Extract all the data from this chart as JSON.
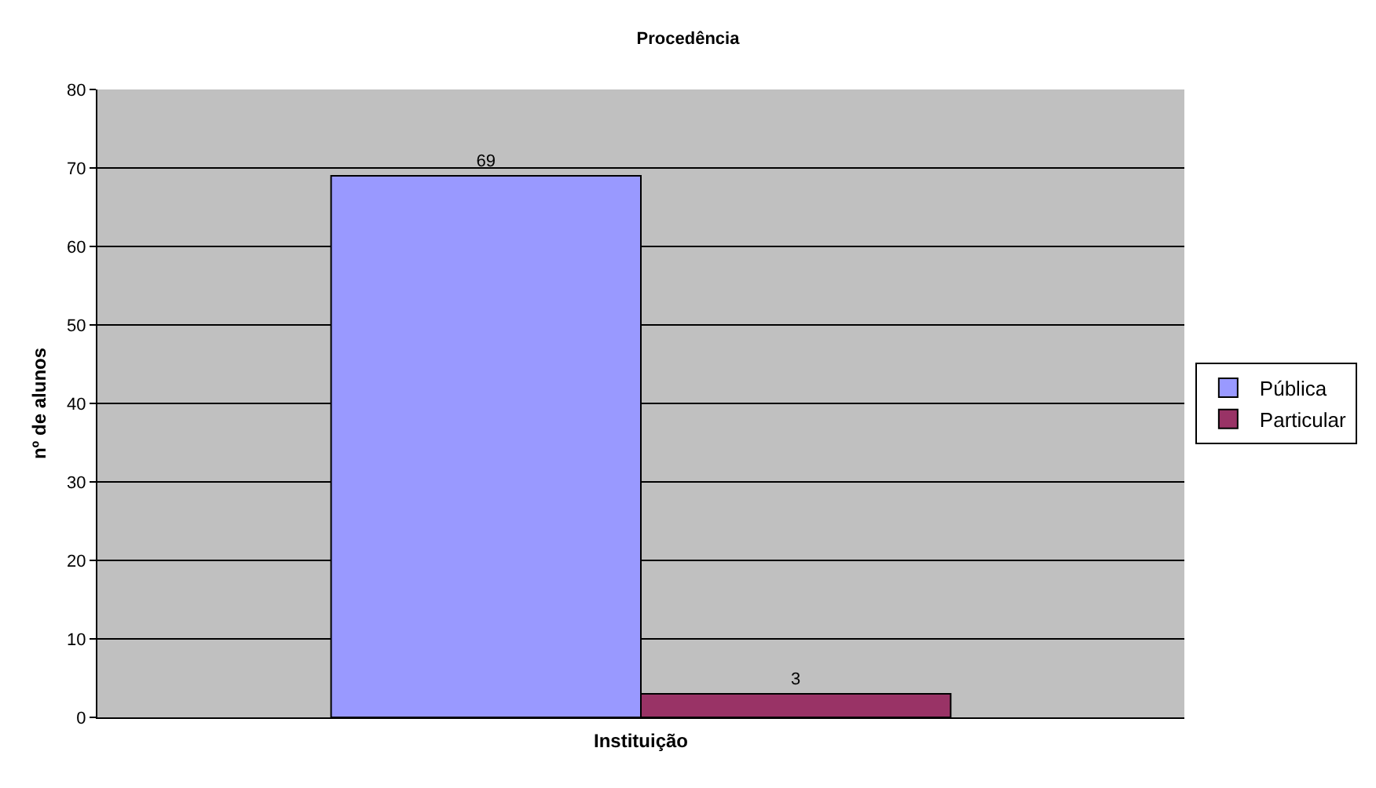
{
  "chart_data": {
    "type": "bar",
    "title": "Procedência",
    "xlabel": "Instituição",
    "ylabel": "nº de alunos",
    "categories": [
      null
    ],
    "series": [
      {
        "name": "Pública",
        "color": "#9999ff",
        "values": [
          69
        ]
      },
      {
        "name": "Particular",
        "color": "#993366",
        "values": [
          3
        ]
      }
    ],
    "ylim": [
      0,
      80
    ],
    "yticks": [
      0,
      10,
      20,
      30,
      40,
      50,
      60,
      70,
      80
    ],
    "grid": "y",
    "legend": "right",
    "data_labels": true
  }
}
